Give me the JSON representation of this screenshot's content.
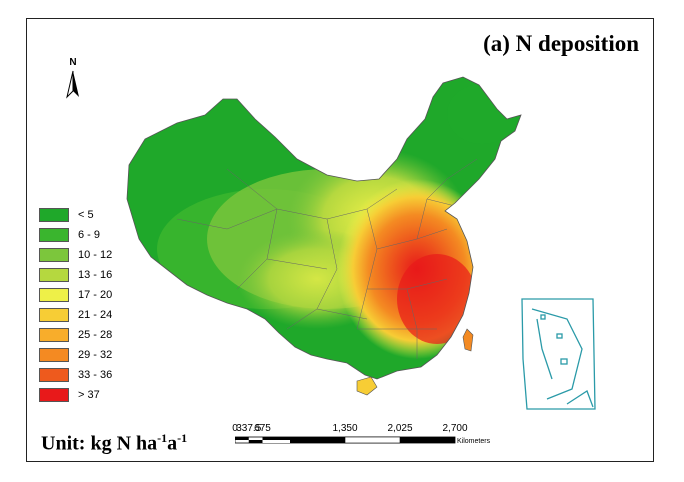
{
  "title": "(a) N deposition",
  "north_label": "N",
  "legend": [
    {
      "label": "< 5",
      "color": "#1fa82a"
    },
    {
      "label": "6 - 9",
      "color": "#3ab52e"
    },
    {
      "label": "10 - 12",
      "color": "#7cc63c"
    },
    {
      "label": "13 - 16",
      "color": "#b5d83f"
    },
    {
      "label": "17 - 20",
      "color": "#eef048"
    },
    {
      "label": "21 - 24",
      "color": "#f7cd35"
    },
    {
      "label": "25 - 28",
      "color": "#f8ad2b"
    },
    {
      "label": "29 - 32",
      "color": "#f48a22"
    },
    {
      "label": "33 - 36",
      "color": "#ee5a1d"
    },
    {
      "label": "> 37",
      "color": "#e8191a"
    }
  ],
  "unit": {
    "prefix": "Unit: kg N ha",
    "exp1": "-1",
    "mid": "a",
    "exp2": "-1"
  },
  "scalebar": {
    "ticks": [
      "0",
      "337.5",
      "675",
      "1,350",
      "2,025",
      "2,700"
    ],
    "unit": "Kilometers"
  }
}
